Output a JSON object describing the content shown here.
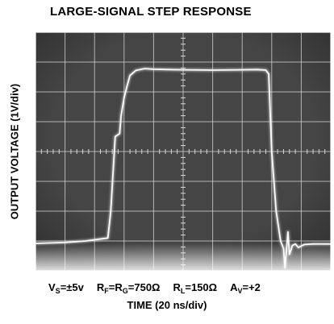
{
  "chart_data": {
    "type": "line",
    "title": "LARGE-SIGNAL STEP RESPONSE",
    "xlabel": "TIME (20 ns/div)",
    "ylabel": "OUTPUT VOLTAGE (1V/div)",
    "x_divisions": 10,
    "y_divisions": 8,
    "x_units_per_div_ns": 20,
    "y_units_per_div_v": 1,
    "xlim_ns": [
      0,
      200
    ],
    "ylim_div": [
      0,
      8
    ],
    "grid": true,
    "colors": {
      "screen": "#454545",
      "grid": "#d8d8d8",
      "trace": "#fafafa",
      "glow": "#dedede"
    },
    "series": [
      {
        "x": [
          0,
          20,
          34,
          49,
          51,
          54,
          57,
          58,
          60,
          62,
          64,
          68,
          74,
          80,
          90,
          100,
          120,
          140,
          150,
          156,
          158,
          160,
          163,
          166,
          168,
          169,
          171,
          172,
          174,
          176,
          178,
          182,
          188,
          196,
          200
        ],
        "y": [
          0.92,
          0.95,
          1.0,
          1.1,
          2.0,
          4.5,
          4.6,
          5.2,
          5.8,
          6.2,
          6.55,
          6.72,
          6.78,
          6.76,
          6.75,
          6.74,
          6.73,
          6.74,
          6.75,
          6.73,
          6.6,
          4.0,
          2.0,
          1.0,
          0.75,
          0.1,
          1.3,
          0.55,
          0.85,
          0.9,
          0.78,
          0.88,
          0.9,
          0.9,
          0.9
        ]
      }
    ]
  },
  "conditions": {
    "vs": {
      "main": "V",
      "sub": "S",
      "rest": " =±5v"
    },
    "rf": {
      "main": "R",
      "sub": "F",
      "rest": "=R"
    },
    "rg": {
      "sub": "G",
      "rest": "=750Ω"
    },
    "rl": {
      "main": "R",
      "sub": "L",
      "rest": "=150Ω"
    },
    "av": {
      "main": "A",
      "sub": "V",
      "rest": "=+2"
    }
  }
}
